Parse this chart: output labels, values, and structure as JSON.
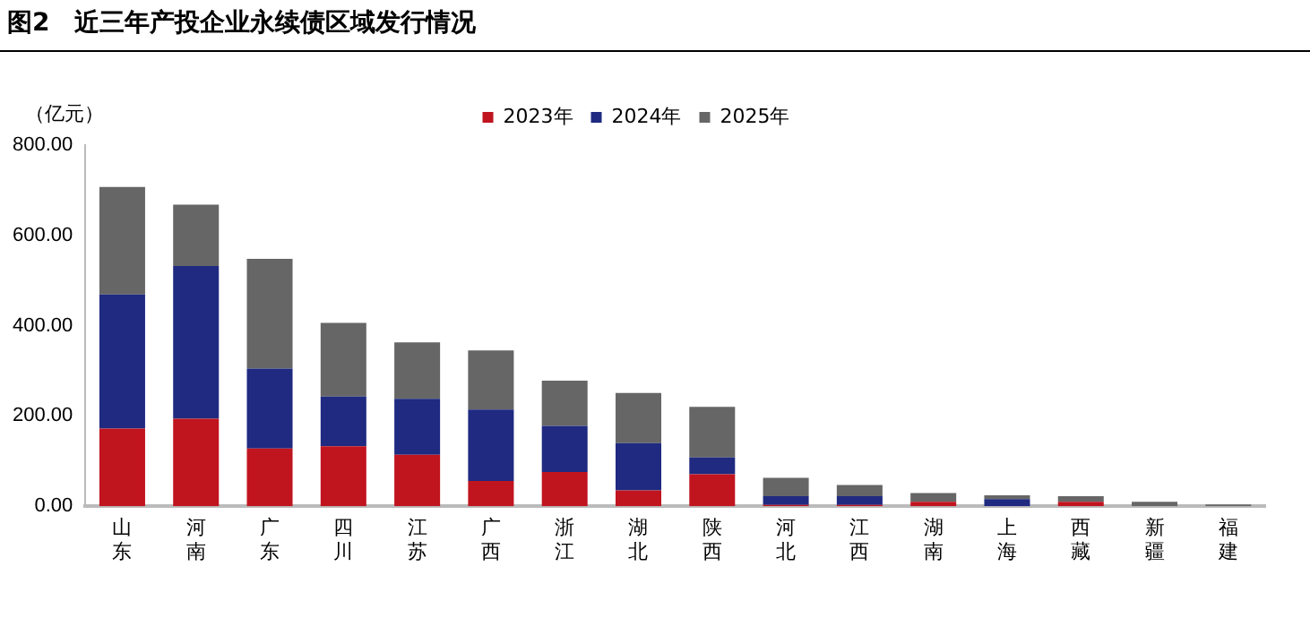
{
  "chart_data": {
    "type": "bar",
    "title": "图2　近三年产投企业永续债区域发行情况",
    "ylabel": "（亿元）",
    "stacked": true,
    "legend": "top",
    "grid": false,
    "categories": [
      "山东",
      "河南",
      "广东",
      "四川",
      "江苏",
      "广西",
      "浙江",
      "湖北",
      "陕西",
      "河北",
      "江西",
      "湖南",
      "上海",
      "西藏",
      "新疆",
      "福建"
    ],
    "ylim": [
      0,
      800
    ],
    "yticks": [
      {
        "value": 0,
        "label": "0.00"
      },
      {
        "value": 200,
        "label": "200.00"
      },
      {
        "value": 400,
        "label": "400.00"
      },
      {
        "value": 600,
        "label": "600.00"
      },
      {
        "value": 800,
        "label": "800.00"
      }
    ],
    "series": [
      {
        "name": "2023年",
        "color": "#c0141f",
        "values": [
          172,
          194,
          128,
          133,
          114,
          56,
          76,
          35,
          71,
          3,
          3,
          10,
          0,
          10,
          0,
          0
        ]
      },
      {
        "name": "2024年",
        "color": "#1f2a80",
        "values": [
          297,
          338,
          177,
          110,
          124,
          158,
          102,
          105,
          37,
          19,
          19,
          0,
          16,
          0,
          0,
          0
        ]
      },
      {
        "name": "2025年",
        "color": "#666666",
        "values": [
          238,
          136,
          243,
          163,
          125,
          131,
          100,
          111,
          112,
          41,
          25,
          19,
          8,
          12,
          10,
          4
        ]
      }
    ]
  }
}
